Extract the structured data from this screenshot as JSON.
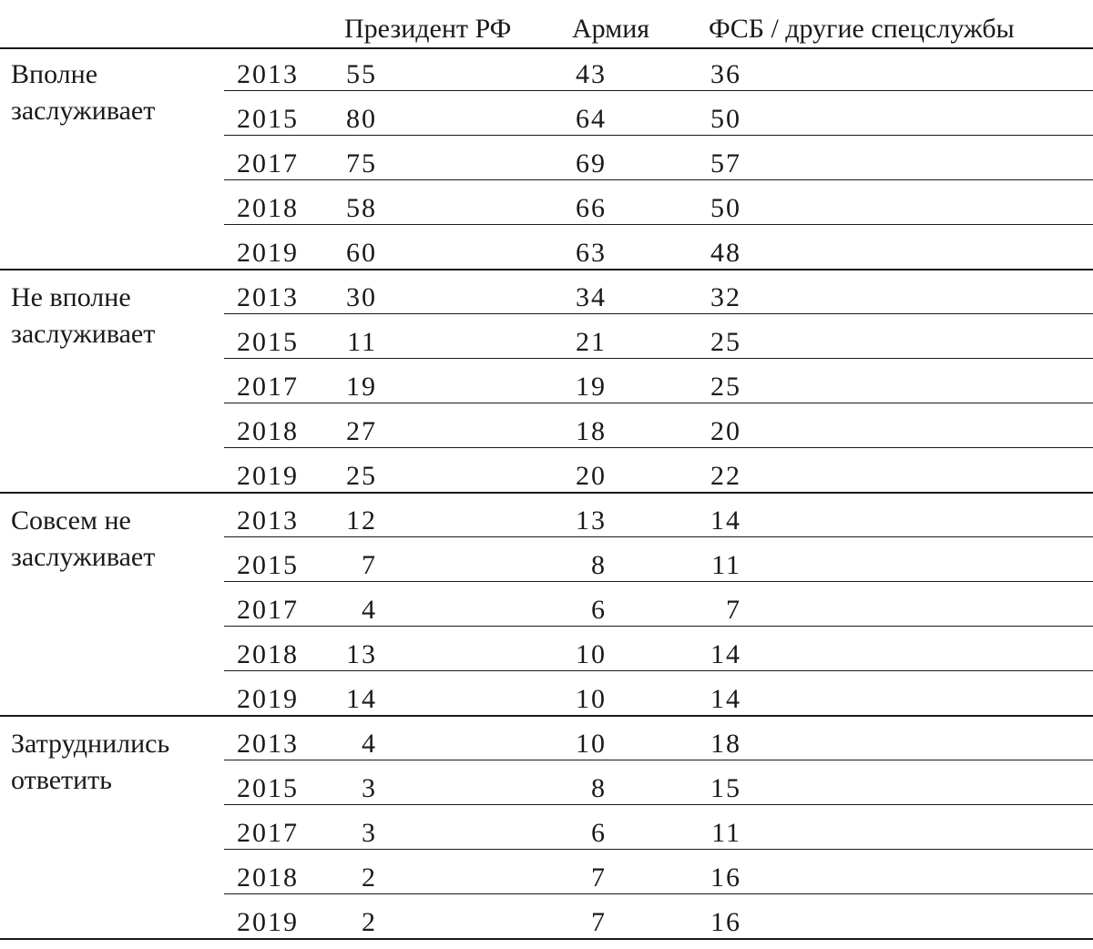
{
  "headers": {
    "col_president": "Президент РФ",
    "col_army": "Армия",
    "col_fsb": "ФСБ / другие спецслужбы"
  },
  "groups": [
    {
      "label": "Вполне заслуживает",
      "rows": [
        {
          "year": "2013",
          "president": "55",
          "army": "43",
          "fsb": "36"
        },
        {
          "year": "2015",
          "president": "80",
          "army": "64",
          "fsb": "50"
        },
        {
          "year": "2017",
          "president": "75",
          "army": "69",
          "fsb": "57"
        },
        {
          "year": "2018",
          "president": "58",
          "army": "66",
          "fsb": "50"
        },
        {
          "year": "2019",
          "president": "60",
          "army": "63",
          "fsb": "48"
        }
      ]
    },
    {
      "label": "Не вполне заслуживает",
      "rows": [
        {
          "year": "2013",
          "president": "30",
          "army": "34",
          "fsb": "32"
        },
        {
          "year": "2015",
          "president": "11",
          "army": "21",
          "fsb": "25"
        },
        {
          "year": "2017",
          "president": "19",
          "army": "19",
          "fsb": "25"
        },
        {
          "year": "2018",
          "president": "27",
          "army": "18",
          "fsb": "20"
        },
        {
          "year": "2019",
          "president": "25",
          "army": "20",
          "fsb": "22"
        }
      ]
    },
    {
      "label": "Совсем не заслуживает",
      "rows": [
        {
          "year": "2013",
          "president": "12",
          "army": "13",
          "fsb": "14"
        },
        {
          "year": "2015",
          "president": "7",
          "army": "8",
          "fsb": "11"
        },
        {
          "year": "2017",
          "president": "4",
          "army": "6",
          "fsb": "7"
        },
        {
          "year": "2018",
          "president": "13",
          "army": "10",
          "fsb": "14"
        },
        {
          "year": "2019",
          "president": "14",
          "army": "10",
          "fsb": "14"
        }
      ]
    },
    {
      "label": "Затруднились ответить",
      "rows": [
        {
          "year": "2013",
          "president": "4",
          "army": "10",
          "fsb": "18"
        },
        {
          "year": "2015",
          "president": "3",
          "army": "8",
          "fsb": "15"
        },
        {
          "year": "2017",
          "president": "3",
          "army": "6",
          "fsb": "11"
        },
        {
          "year": "2018",
          "president": "2",
          "army": "7",
          "fsb": "16"
        },
        {
          "year": "2019",
          "president": "2",
          "army": "7",
          "fsb": "16"
        }
      ]
    }
  ]
}
